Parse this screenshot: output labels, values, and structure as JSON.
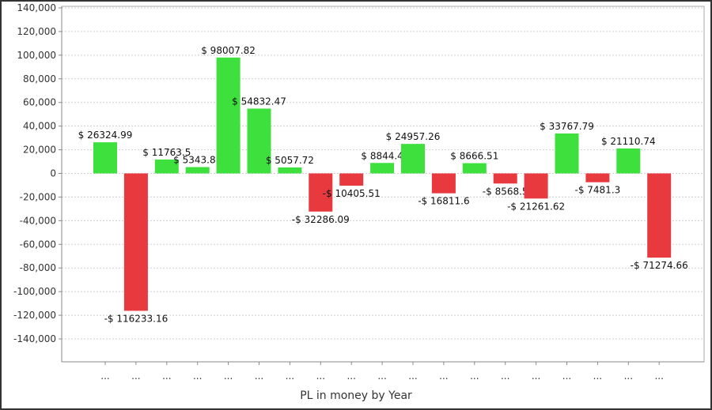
{
  "chart_data": {
    "type": "bar",
    "title": "",
    "xlabel": "PL in money by Year",
    "ylabel": "",
    "ylim": [
      -140000,
      140000
    ],
    "ytick_step": 20000,
    "grid": true,
    "legend": "none",
    "categories": [
      "...",
      "...",
      "...",
      "...",
      "...",
      "...",
      "...",
      "...",
      "...",
      "...",
      "...",
      "...",
      "...",
      "...",
      "...",
      "...",
      "...",
      "...",
      "..."
    ],
    "values": [
      26324.99,
      -116233.16,
      11763.5,
      5343.88,
      98007.82,
      54832.47,
      5057.72,
      -32286.09,
      -10405.51,
      8844.4,
      24957.26,
      -16811.6,
      8666.51,
      -8568.5,
      -21261.62,
      33767.79,
      -7481.3,
      21110.74,
      -71274.66
    ],
    "data_labels": [
      "$ 26324.99",
      "-$ 116233.16",
      "$ 11763.5",
      "$ 5343.88",
      "$ 98007.82",
      "$ 54832.47",
      "$ 5057.72",
      "-$ 32286.09",
      "-$ 10405.51",
      "$ 8844.4",
      "$ 24957.26",
      "-$ 16811.6",
      "$ 8666.51",
      "-$ 8568.5",
      "-$ 21261.62",
      "$ 33767.79",
      "-$ 7481.3",
      "$ 21110.74",
      "-$ 71274.66"
    ],
    "colors": {
      "positive": "#3ee03e",
      "negative": "#e8393f",
      "grid": "#cfcfcf",
      "axis": "#888888"
    }
  }
}
